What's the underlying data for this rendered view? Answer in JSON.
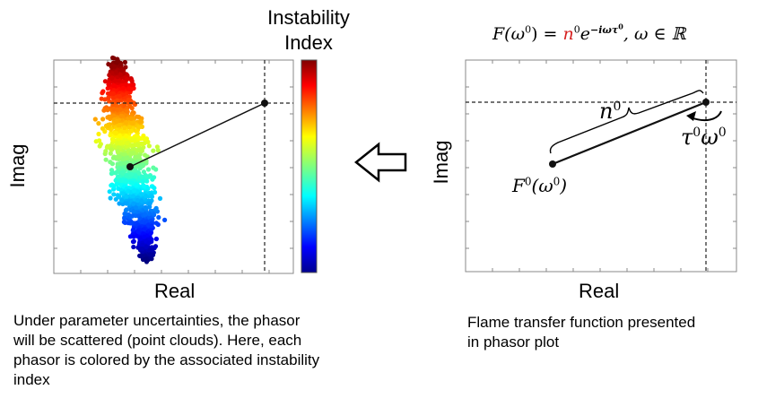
{
  "colorbar": {
    "title_line1": "Instability",
    "title_line2": "Index"
  },
  "left_plot": {
    "xlabel": "Real",
    "ylabel": "Imag",
    "caption_lines": [
      "Under parameter uncertainties, the phasor",
      "will be scattered (point clouds). Here, each",
      "phasor is colored by the associated instability",
      "index"
    ]
  },
  "right_plot": {
    "xlabel": "Real",
    "ylabel": "Imag",
    "formula": {
      "lhs": "F(ω",
      "sup0": "0",
      "eq": ") = ",
      "n": "n",
      "e": "e",
      "exp": "−iωτ",
      "tail": ",  ω ∈ ℝ"
    },
    "brace_label": "n",
    "brace_label_sup": "0",
    "angle_label": "τ",
    "angle_label_sup1": "0",
    "angle_label_w": "ω",
    "angle_label_sup2": "0",
    "point_label": "F",
    "point_label_sup": "0",
    "point_label_arg": "(ω",
    "point_label_arg_sup": "0",
    "point_label_close": ")",
    "caption_lines": [
      "Flame transfer function presented",
      "in phasor plot"
    ]
  },
  "accent_colors": {
    "red_symbol": "#d62020"
  }
}
